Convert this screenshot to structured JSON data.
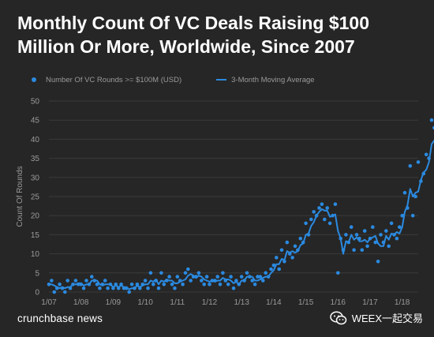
{
  "title": "Monthly Count Of VC Deals Raising $100 Million Or More, Worldwide, Since 2007",
  "legend": {
    "dots_label": "Number Of VC Rounds >= $100M (USD)",
    "line_label": "3-Month Moving Average"
  },
  "footer": {
    "brand": "crunchbase news",
    "watermark": "WEEX一起交易",
    "watermark_icon": "wechat-icon"
  },
  "colors": {
    "background": "#262626",
    "series": "#2b8ae0",
    "grid": "#3a3a3a",
    "text": "#9a9a9a"
  },
  "chart_data": {
    "type": "scatter",
    "title": "Monthly Count Of VC Deals Raising $100 Million Or More, Worldwide, Since 2007",
    "xlabel": "",
    "ylabel": "Count Of Rounds",
    "ylim": [
      0,
      50
    ],
    "yticks": [
      0,
      5,
      10,
      15,
      20,
      25,
      30,
      35,
      40,
      45,
      50
    ],
    "xticks": [
      "1/07",
      "1/08",
      "1/09",
      "1/10",
      "1/11",
      "1/12",
      "1/13",
      "1/14",
      "1/15",
      "1/16",
      "1/17",
      "1/18"
    ],
    "grid": true,
    "legend_position": "top-left",
    "x_start": "2007-01",
    "series": [
      {
        "name": "Number Of VC Rounds >= $100M (USD)",
        "kind": "dots",
        "values": [
          2,
          3,
          0,
          1,
          2,
          1,
          0,
          3,
          1,
          2,
          3,
          2,
          2,
          1,
          3,
          2,
          4,
          3,
          2,
          1,
          2,
          3,
          1,
          2,
          1,
          2,
          1,
          2,
          1,
          1,
          0,
          2,
          1,
          2,
          1,
          2,
          3,
          1,
          5,
          2,
          3,
          1,
          5,
          2,
          3,
          4,
          2,
          1,
          4,
          3,
          2,
          5,
          6,
          3,
          4,
          4,
          5,
          3,
          2,
          4,
          2,
          3,
          3,
          4,
          2,
          5,
          3,
          2,
          4,
          1,
          3,
          2,
          4,
          3,
          5,
          4,
          3,
          2,
          4,
          4,
          3,
          5,
          4,
          6,
          7,
          9,
          6,
          11,
          8,
          13,
          10,
          9,
          12,
          11,
          14,
          13,
          18,
          15,
          19,
          21,
          20,
          22,
          23,
          19,
          22,
          18,
          20,
          23,
          5,
          14,
          11,
          15,
          13,
          17,
          11,
          15,
          14,
          11,
          16,
          12,
          14,
          17,
          13,
          8,
          15,
          13,
          16,
          12,
          18,
          15,
          14,
          17,
          20,
          26,
          22,
          33,
          20,
          25,
          34,
          29,
          31,
          36,
          35,
          45,
          43
        ]
      },
      {
        "name": "3-Month Moving Average",
        "kind": "line",
        "values": [
          2,
          2,
          1.7,
          1.3,
          1,
          1.3,
          1,
          1.3,
          1.3,
          2,
          2,
          2.3,
          2.3,
          1.7,
          2,
          2,
          3,
          3,
          3,
          2,
          1.7,
          2,
          2,
          2,
          1.3,
          1.7,
          1.3,
          1.7,
          1.3,
          1.3,
          0.7,
          1,
          1,
          1.7,
          1.3,
          1.7,
          2,
          2,
          3,
          2.7,
          3.3,
          2,
          3,
          2.7,
          3.3,
          3,
          3,
          2.3,
          2.3,
          2.7,
          3,
          3.3,
          4.3,
          4.7,
          4.3,
          3.7,
          4.3,
          4,
          3.3,
          3,
          2.7,
          3,
          2.7,
          3,
          3,
          3.7,
          3.3,
          3.3,
          3,
          2.3,
          2.7,
          2,
          3,
          3,
          4,
          4,
          4,
          3,
          3,
          3.3,
          3.7,
          4,
          4,
          5,
          5.7,
          7.3,
          7.3,
          8.7,
          8.3,
          10.7,
          10.3,
          10.7,
          10.3,
          10.7,
          12.3,
          12.7,
          15,
          15.3,
          17.3,
          18.3,
          20,
          21,
          21.7,
          21.3,
          21.3,
          19.7,
          20,
          20.3,
          16,
          14,
          10,
          13.3,
          13,
          15,
          13.7,
          14.3,
          13.3,
          13.3,
          13.7,
          13,
          14,
          14.3,
          14.7,
          12.7,
          12,
          12,
          14.7,
          13.7,
          15.3,
          15,
          15.7,
          15.3,
          17,
          21,
          22.7,
          27,
          25,
          26,
          26.3,
          29.3,
          31.3,
          32,
          34,
          38.7,
          39.7
        ]
      }
    ]
  }
}
